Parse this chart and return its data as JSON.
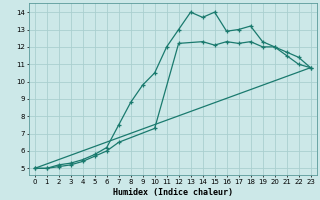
{
  "xlabel": "Humidex (Indice chaleur)",
  "ylabel": "",
  "bg_color": "#cce8e8",
  "grid_color": "#aacfcf",
  "line_color": "#1a7a6e",
  "xlim": [
    -0.5,
    23.5
  ],
  "ylim": [
    4.6,
    14.5
  ],
  "xticks": [
    0,
    1,
    2,
    3,
    4,
    5,
    6,
    7,
    8,
    9,
    10,
    11,
    12,
    13,
    14,
    15,
    16,
    17,
    18,
    19,
    20,
    21,
    22,
    23
  ],
  "yticks": [
    5,
    6,
    7,
    8,
    9,
    10,
    11,
    12,
    13,
    14
  ],
  "line1_x": [
    0,
    1,
    2,
    3,
    4,
    5,
    6,
    7,
    8,
    9,
    10,
    11,
    12,
    13,
    14,
    15,
    16,
    17,
    18,
    19,
    20,
    21,
    22,
    23
  ],
  "line1_y": [
    5.0,
    5.0,
    5.2,
    5.3,
    5.5,
    5.8,
    6.2,
    7.5,
    8.8,
    9.8,
    10.5,
    12.0,
    13.0,
    14.0,
    13.7,
    14.0,
    12.9,
    13.0,
    13.2,
    12.3,
    12.0,
    11.7,
    11.4,
    10.8
  ],
  "line2_x": [
    0,
    1,
    2,
    3,
    4,
    5,
    6,
    7,
    10,
    12,
    14,
    15,
    16,
    17,
    18,
    19,
    20,
    21,
    22,
    23
  ],
  "line2_y": [
    5.0,
    5.0,
    5.1,
    5.2,
    5.4,
    5.7,
    6.0,
    6.5,
    7.3,
    12.2,
    12.3,
    12.1,
    12.3,
    12.2,
    12.3,
    12.0,
    12.0,
    11.5,
    11.0,
    10.8
  ],
  "line3_x": [
    0,
    23
  ],
  "line3_y": [
    5.0,
    10.8
  ]
}
